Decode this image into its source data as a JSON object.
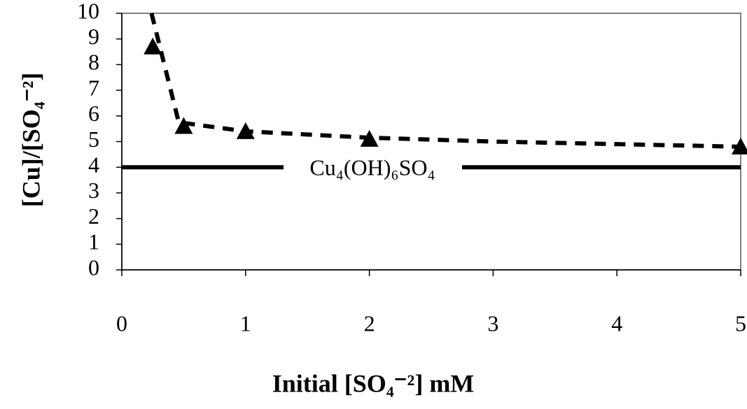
{
  "chart_data": {
    "type": "line",
    "x_label": "Initial [SO₄⁻²] mM",
    "y_label": "[Cu]/[SO₄⁻²]",
    "annotation": "Cu₄(OH)₆SO₄",
    "xlim": [
      0,
      5
    ],
    "xticks": [
      0,
      1,
      2,
      3,
      4,
      5
    ],
    "ylim": [
      0,
      10
    ],
    "yticks": [
      0,
      1,
      2,
      3,
      4,
      5,
      6,
      7,
      8,
      9,
      10
    ],
    "series": [
      {
        "style": "markers",
        "color": "#000000",
        "x": [
          0.25,
          0.5,
          1,
          2,
          5
        ],
        "values": [
          8.7,
          5.6,
          5.4,
          5.1,
          4.8
        ]
      },
      {
        "style": "dashed",
        "color": "#000000",
        "x": [
          0.24,
          0.46,
          1,
          2,
          3,
          4,
          5
        ],
        "values": [
          10,
          5.75,
          5.4,
          5.15,
          5.0,
          4.9,
          4.8
        ]
      },
      {
        "style": "solid",
        "color": "#000000",
        "x": [
          0,
          5
        ],
        "values": [
          4,
          4
        ]
      }
    ]
  }
}
